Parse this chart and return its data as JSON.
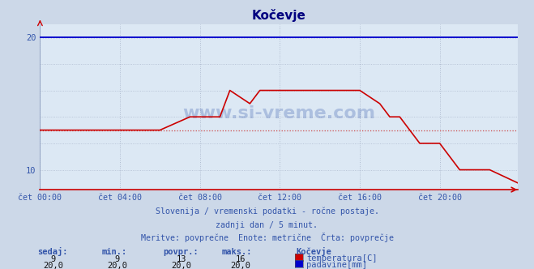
{
  "title": "Kočevje",
  "bg_color": "#ccd8e8",
  "plot_bg_color": "#dce8f4",
  "grid_color": "#b0bcd0",
  "title_color": "#000080",
  "text_color": "#3355aa",
  "temp_color": "#cc0000",
  "rain_color": "#0000cc",
  "avg_line_color": "#cc4444",
  "xlim": [
    0,
    287
  ],
  "ylim": [
    8.5,
    21.0
  ],
  "yticks": [
    10,
    20
  ],
  "xtick_positions": [
    0,
    48,
    96,
    144,
    192,
    240
  ],
  "xtick_labels": [
    "čet 00:00",
    "čet 04:00",
    "čet 08:00",
    "čet 12:00",
    "čet 16:00",
    "čet 20:00"
  ],
  "temp_x": [
    0,
    36,
    36,
    72,
    72,
    90,
    90,
    108,
    108,
    114,
    114,
    126,
    126,
    132,
    132,
    144,
    144,
    150,
    150,
    192,
    192,
    204,
    204,
    210,
    210,
    216,
    216,
    228,
    228,
    240,
    240,
    252,
    252,
    264,
    264,
    270,
    270,
    287
  ],
  "temp_y": [
    13,
    13,
    13,
    13,
    13,
    14,
    14,
    14,
    14,
    16,
    16,
    15,
    15,
    16,
    16,
    16,
    16,
    16,
    16,
    16,
    16,
    15,
    15,
    14,
    14,
    14,
    14,
    12,
    12,
    12,
    12,
    10,
    10,
    10,
    10,
    10,
    10,
    9
  ],
  "rain_x": [
    0,
    95,
    95,
    145,
    145,
    287
  ],
  "rain_y": [
    20,
    20,
    20,
    20,
    20,
    20
  ],
  "avg_temp": 13,
  "rain_value": 20,
  "subtitle1": "Slovenija / vremenski podatki - ročne postaje.",
  "subtitle2": "zadnji dan / 5 minut.",
  "subtitle3": "Meritve: povprečne  Enote: metrične  Črta: povprečje",
  "legend_title": "Kočevje",
  "legend_items": [
    {
      "label": "temperatura[C]",
      "color": "#cc0000"
    },
    {
      "label": "padavine[mm]",
      "color": "#0000cc"
    }
  ],
  "stats_headers": [
    "sedaj:",
    "min.:",
    "povpr.:",
    "maks.:"
  ],
  "stats_temp": [
    "9",
    "9",
    "13",
    "16"
  ],
  "stats_rain": [
    "20,0",
    "20,0",
    "20,0",
    "20,0"
  ]
}
